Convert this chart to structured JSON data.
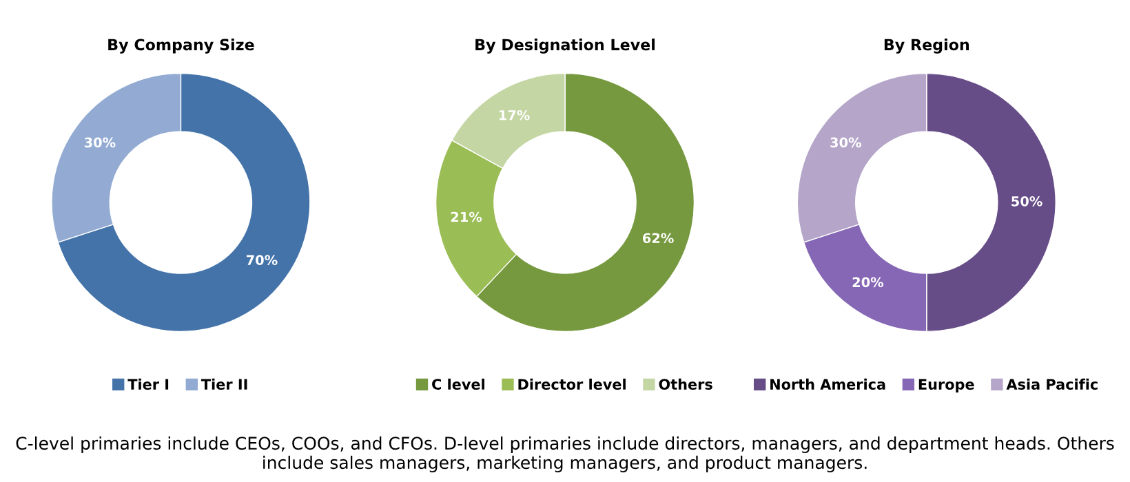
{
  "chart_data": [
    {
      "type": "donut",
      "title": "By Company Size",
      "categories": [
        "Tier I",
        "Tier II"
      ],
      "values": [
        70,
        30
      ],
      "value_labels": [
        "70%",
        "30%"
      ],
      "colors": [
        "#4473a9",
        "#93abd3"
      ],
      "legend": "bottom"
    },
    {
      "type": "donut",
      "title": "By Designation Level",
      "categories": [
        "C level",
        "Director level",
        "Others"
      ],
      "values": [
        62,
        21,
        17
      ],
      "value_labels": [
        "62%",
        "21%",
        "17%"
      ],
      "colors": [
        "#76993f",
        "#9bbd55",
        "#c4d6a4"
      ],
      "legend": "bottom",
      "annotations": [
        "C-level primaries include CEOs, COOs, and CFOs. D-level primaries include directors, managers, and department heads. Others include sales managers, marketing managers, and product managers."
      ]
    },
    {
      "type": "donut",
      "title": "By Region",
      "categories": [
        "North America",
        "Europe",
        "Asia Pacific"
      ],
      "values": [
        50,
        20,
        30
      ],
      "value_labels": [
        "50%",
        "20%",
        "30%"
      ],
      "colors": [
        "#674d87",
        "#8667b5",
        "#b5a6c9"
      ],
      "legend": "bottom"
    }
  ]
}
